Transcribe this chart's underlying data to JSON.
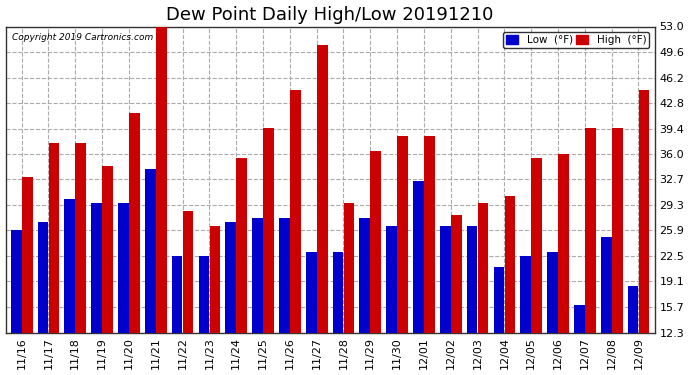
{
  "title": "Dew Point Daily High/Low 20191210",
  "copyright": "Copyright 2019 Cartronics.com",
  "dates": [
    "11/16",
    "11/17",
    "11/18",
    "11/19",
    "11/20",
    "11/21",
    "11/22",
    "11/23",
    "11/24",
    "11/25",
    "11/26",
    "11/27",
    "11/28",
    "11/29",
    "11/30",
    "12/01",
    "12/02",
    "12/03",
    "12/04",
    "12/05",
    "12/06",
    "12/07",
    "12/08",
    "12/09"
  ],
  "low_values": [
    26.0,
    27.0,
    30.0,
    29.5,
    29.5,
    34.0,
    22.5,
    22.5,
    27.0,
    27.5,
    27.5,
    23.0,
    23.0,
    27.5,
    26.5,
    32.5,
    26.5,
    26.5,
    21.0,
    22.5,
    23.0,
    16.0,
    25.0,
    18.5
  ],
  "high_values": [
    33.0,
    37.5,
    37.5,
    34.5,
    41.5,
    53.5,
    28.5,
    26.5,
    35.5,
    39.5,
    44.5,
    50.5,
    29.5,
    36.5,
    38.5,
    38.5,
    28.0,
    29.5,
    30.5,
    35.5,
    36.0,
    39.5,
    39.5,
    44.5
  ],
  "low_color": "#0000cc",
  "high_color": "#cc0000",
  "bg_color": "#ffffff",
  "grid_color": "#aaaaaa",
  "yticks": [
    12.3,
    15.7,
    19.1,
    22.5,
    25.9,
    29.3,
    32.7,
    36.0,
    39.4,
    42.8,
    46.2,
    49.6,
    53.0
  ],
  "ymin": 12.3,
  "ymax": 53.0,
  "title_fontsize": 13,
  "tick_fontsize": 8,
  "legend_low_label": "Low  (°F)",
  "legend_high_label": "High  (°F)"
}
